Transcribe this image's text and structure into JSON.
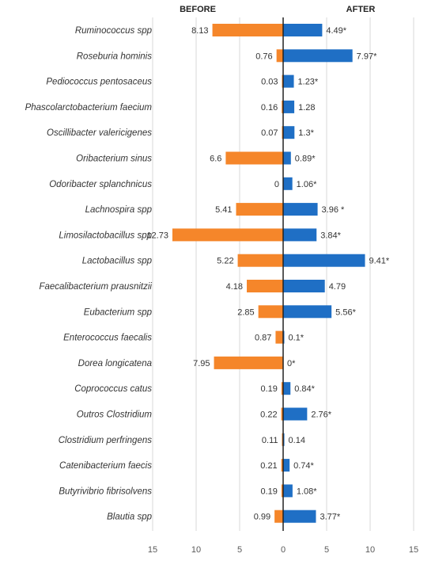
{
  "chart_data": {
    "type": "bar",
    "orientation": "horizontal-diverging",
    "headers": {
      "left": "BEFORE",
      "right": "AFTER"
    },
    "categories": [
      "Ruminococcus spp",
      "Roseburia hominis",
      "Pediococcus pentosaceus",
      "Phascolarctobacterium faecium",
      "Oscillibacter valericigenes",
      "Oribacterium sinus",
      "Odoribacter splanchnicus",
      "Lachnospira spp",
      "Limosilactobacillus spp",
      "Lactobacillus spp",
      "Faecalibacterium  prausnitzii",
      "Eubacterium spp",
      "Enterococcus faecalis",
      "Dorea longicatena",
      "Coprococcus catus",
      "Outros Clostridium",
      "Clostridium perfringens",
      "Catenibacterium faecis",
      "Butyrivibrio fibrisolvens",
      "Blautia spp"
    ],
    "series": [
      {
        "side": "left",
        "color": "#F5862A",
        "values": [
          8.13,
          0.76,
          0.03,
          0.16,
          0.07,
          6.6,
          0,
          5.41,
          12.73,
          5.22,
          4.18,
          2.85,
          0.87,
          7.95,
          0.19,
          0.22,
          0.11,
          0.21,
          0.19,
          0.99
        ],
        "labels": [
          "8.13",
          "0.76",
          "0.03",
          "0.16",
          "0.07",
          "6.6",
          "0",
          "5.41",
          "12.73",
          "5.22",
          "4.18",
          "2.85",
          "0.87",
          "7.95",
          "0.19",
          "0.22",
          "0.11",
          "0.21",
          "0.19",
          "0.99"
        ]
      },
      {
        "side": "right",
        "color": "#1F6FC5",
        "values": [
          4.49,
          7.97,
          1.23,
          1.28,
          1.3,
          0.89,
          1.06,
          3.96,
          3.84,
          9.41,
          4.79,
          5.56,
          0.1,
          0,
          0.84,
          2.76,
          0.14,
          0.74,
          1.08,
          3.77
        ],
        "labels": [
          "4.49*",
          "7.97*",
          "1.23*",
          "1.28",
          "1.3*",
          "0.89*",
          "1.06*",
          "3.96 *",
          "3.84*",
          "9.41*",
          "4.79",
          "5.56*",
          "0.1*",
          "0*",
          "0.84*",
          "2.76*",
          "0.14",
          "0.74*",
          "1.08*",
          "3.77*"
        ]
      }
    ],
    "x_ticks": [
      "15",
      "10",
      "5",
      "0",
      "5",
      "10",
      "15"
    ],
    "xlim": [
      -15,
      15
    ],
    "grid": true,
    "legend": "none"
  }
}
